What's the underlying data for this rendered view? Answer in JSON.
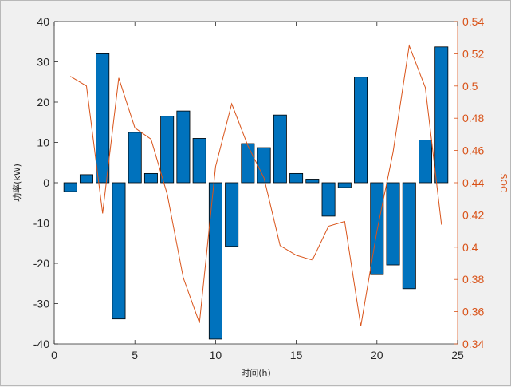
{
  "chart_data": {
    "type": "bar",
    "title": "",
    "xlabel": "时间(h)",
    "ylabel": "功率(kW)",
    "y2label": "SOC",
    "xlim": [
      0,
      25
    ],
    "ylim": [
      -40,
      40
    ],
    "y2lim": [
      0.34,
      0.54
    ],
    "x_ticks": [
      0,
      5,
      10,
      15,
      20,
      25
    ],
    "y_ticks": [
      -40,
      -30,
      -20,
      -10,
      0,
      10,
      20,
      30,
      40
    ],
    "y2_ticks": [
      0.34,
      0.36,
      0.38,
      0.4,
      0.42,
      0.44,
      0.46,
      0.48,
      0.5,
      0.52,
      0.54
    ],
    "grid": false,
    "x": [
      1,
      2,
      3,
      4,
      5,
      6,
      7,
      8,
      9,
      10,
      11,
      12,
      13,
      14,
      15,
      16,
      17,
      18,
      19,
      20,
      21,
      22,
      23,
      24
    ],
    "series": [
      {
        "type": "bar",
        "axis": "left",
        "values": [
          -2.2,
          2.0,
          32.0,
          -33.8,
          12.5,
          2.3,
          16.5,
          17.8,
          11.0,
          -38.8,
          -15.8,
          9.7,
          8.7,
          16.8,
          2.3,
          0.9,
          -8.3,
          -1.2,
          26.2,
          -22.8,
          -20.4,
          -26.3,
          10.6,
          33.7
        ]
      },
      {
        "type": "line",
        "axis": "right",
        "values": [
          0.506,
          0.5,
          0.421,
          0.505,
          0.474,
          0.467,
          0.433,
          0.381,
          0.353,
          0.45,
          0.489,
          0.463,
          0.443,
          0.401,
          0.395,
          0.392,
          0.413,
          0.416,
          0.351,
          0.41,
          0.459,
          0.525,
          0.499,
          0.414
        ]
      }
    ],
    "colors": {
      "bar_fill": "#0072BD",
      "bar_edge": "#000000",
      "line": "#D95319",
      "right_axis": "#D95319",
      "left_axis": "#262626"
    }
  }
}
